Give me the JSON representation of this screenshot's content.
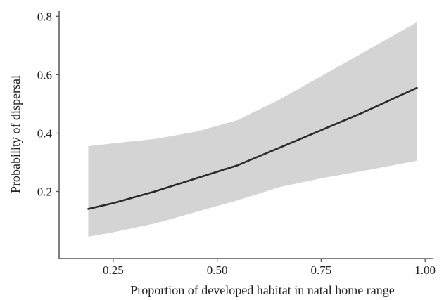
{
  "chart_data": {
    "type": "line",
    "xlabel": "Proportion of developed habitat in natal home range",
    "ylabel": "Probability of dispersal",
    "xlim": [
      0.12,
      1.02
    ],
    "ylim": [
      -0.03,
      0.82
    ],
    "x_ticks": [
      "0.25",
      "0.50",
      "0.75",
      "1.00"
    ],
    "y_ticks": [
      "0.2",
      "0.4",
      "0.6",
      "0.8"
    ],
    "grid": false,
    "series": [
      {
        "x": [
          0.19,
          0.25,
          0.35,
          0.45,
          0.55,
          0.65,
          0.75,
          0.85,
          0.98
        ],
        "values": [
          0.14,
          0.16,
          0.2,
          0.245,
          0.29,
          0.35,
          0.41,
          0.47,
          0.555
        ],
        "lower": [
          0.045,
          0.06,
          0.09,
          0.13,
          0.17,
          0.215,
          0.245,
          0.27,
          0.305
        ],
        "upper": [
          0.355,
          0.365,
          0.38,
          0.405,
          0.445,
          0.515,
          0.595,
          0.675,
          0.78
        ]
      }
    ],
    "colors": {
      "line": "#2b2b2b",
      "ribbon": "#d4d4d4",
      "axis": "#555555"
    }
  }
}
